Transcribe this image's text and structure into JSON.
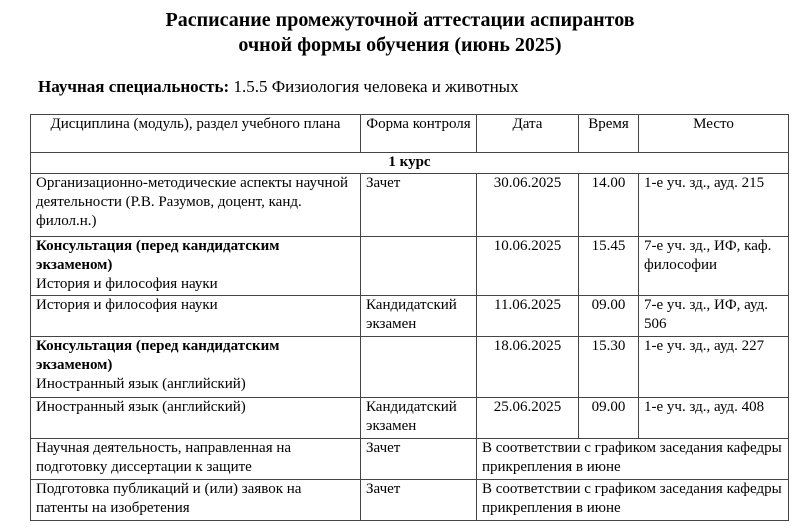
{
  "title_line1": "Расписание промежуточной аттестации аспирантов",
  "title_line2": "очной формы обучения (июнь 2025)",
  "specialty_label": "Научная специальность:",
  "specialty_value": "1.5.5 Физиология человека и животных",
  "headers": [
    "Дисциплина (модуль), раздел учебного плана",
    "Форма контроля",
    "Дата",
    "Время",
    "Место"
  ],
  "course": "1 курс",
  "rows": [
    {
      "discipline_bold": "",
      "discipline": "Организационно-методические аспекты научной деятельности (Р.В. Разумов, доцент, канд. филол.н.)",
      "form": "Зачет",
      "date": "30.06.2025",
      "time": "14.00",
      "place": "1-е уч. зд., ауд. 215"
    },
    {
      "discipline_bold": "Консультация (перед кандидатским экзаменом)",
      "discipline": "История и философия науки",
      "form": "",
      "date": "10.06.2025",
      "time": "15.45",
      "place": "7-е уч. зд., ИФ, каф. философии"
    },
    {
      "discipline_bold": "",
      "discipline": "История и философия науки",
      "form": "Кандидатский экзамен",
      "date": "11.06.2025",
      "time": "09.00",
      "place": "7-е уч. зд., ИФ, ауд. 506"
    },
    {
      "discipline_bold": "Консультация (перед кандидатским экзаменом)",
      "discipline": "Иностранный язык (английский)",
      "form": "",
      "date": "18.06.2025",
      "time": "15.30",
      "place": "1-е уч. зд., ауд. 227"
    },
    {
      "discipline_bold": "",
      "discipline": "Иностранный язык (английский)",
      "form": "Кандидатский экзамен",
      "date": "25.06.2025",
      "time": "09.00",
      "place": "1-е уч. зд., ауд. 408"
    }
  ],
  "merged_rows": [
    {
      "discipline": "Научная деятельность, направленная на подготовку диссертации к защите",
      "form": "Зачет",
      "note": "В соответствии с графиком заседания кафедры прикрепления в июне"
    },
    {
      "discipline": "Подготовка публикаций и (или) заявок на патенты на изобретения",
      "form": "Зачет",
      "note": "В соответствии с графиком заседания кафедры прикрепления в июне"
    }
  ]
}
